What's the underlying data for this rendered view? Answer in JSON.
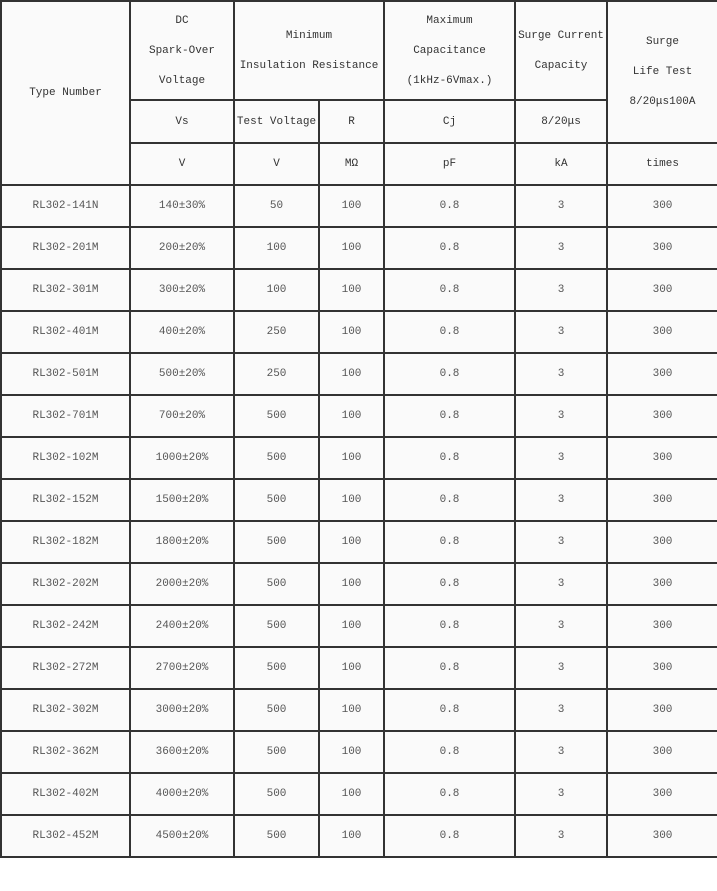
{
  "header": {
    "type_number": "Type Number",
    "spark_over": [
      "DC",
      "Spark-Over",
      "Voltage"
    ],
    "insulation": [
      "Minimum",
      "Insulation Resistance"
    ],
    "capacitance": [
      "Maximum",
      "Capacitance",
      "(1kHz-6Vmax.)"
    ],
    "surge_current": [
      "Surge Current",
      "Capacity"
    ],
    "surge_life": [
      "Surge",
      "Life Test",
      "8/20μs100A"
    ],
    "symbols": {
      "vs": "Vs",
      "test_voltage": "Test Voltage",
      "r": "R",
      "cj": "Cj",
      "surge": "8/20μs"
    },
    "units": {
      "vs": "V",
      "test_voltage": "V",
      "r": "MΩ",
      "cj": "pF",
      "surge": "kA",
      "life": "times"
    }
  },
  "rows": [
    [
      "RL302-141N",
      "140±30%",
      "50",
      "100",
      "0.8",
      "3",
      "300"
    ],
    [
      "RL302-201M",
      "200±20%",
      "100",
      "100",
      "0.8",
      "3",
      "300"
    ],
    [
      "RL302-301M",
      "300±20%",
      "100",
      "100",
      "0.8",
      "3",
      "300"
    ],
    [
      "RL302-401M",
      "400±20%",
      "250",
      "100",
      "0.8",
      "3",
      "300"
    ],
    [
      "RL302-501M",
      "500±20%",
      "250",
      "100",
      "0.8",
      "3",
      "300"
    ],
    [
      "RL302-701M",
      "700±20%",
      "500",
      "100",
      "0.8",
      "3",
      "300"
    ],
    [
      "RL302-102M",
      "1000±20%",
      "500",
      "100",
      "0.8",
      "3",
      "300"
    ],
    [
      "RL302-152M",
      "1500±20%",
      "500",
      "100",
      "0.8",
      "3",
      "300"
    ],
    [
      "RL302-182M",
      "1800±20%",
      "500",
      "100",
      "0.8",
      "3",
      "300"
    ],
    [
      "RL302-202M",
      "2000±20%",
      "500",
      "100",
      "0.8",
      "3",
      "300"
    ],
    [
      "RL302-242M",
      "2400±20%",
      "500",
      "100",
      "0.8",
      "3",
      "300"
    ],
    [
      "RL302-272M",
      "2700±20%",
      "500",
      "100",
      "0.8",
      "3",
      "300"
    ],
    [
      "RL302-302M",
      "3000±20%",
      "500",
      "100",
      "0.8",
      "3",
      "300"
    ],
    [
      "RL302-362M",
      "3600±20%",
      "500",
      "100",
      "0.8",
      "3",
      "300"
    ],
    [
      "RL302-402M",
      "4000±20%",
      "500",
      "100",
      "0.8",
      "3",
      "300"
    ],
    [
      "RL302-452M",
      "4500±20%",
      "500",
      "100",
      "0.8",
      "3",
      "300"
    ]
  ]
}
